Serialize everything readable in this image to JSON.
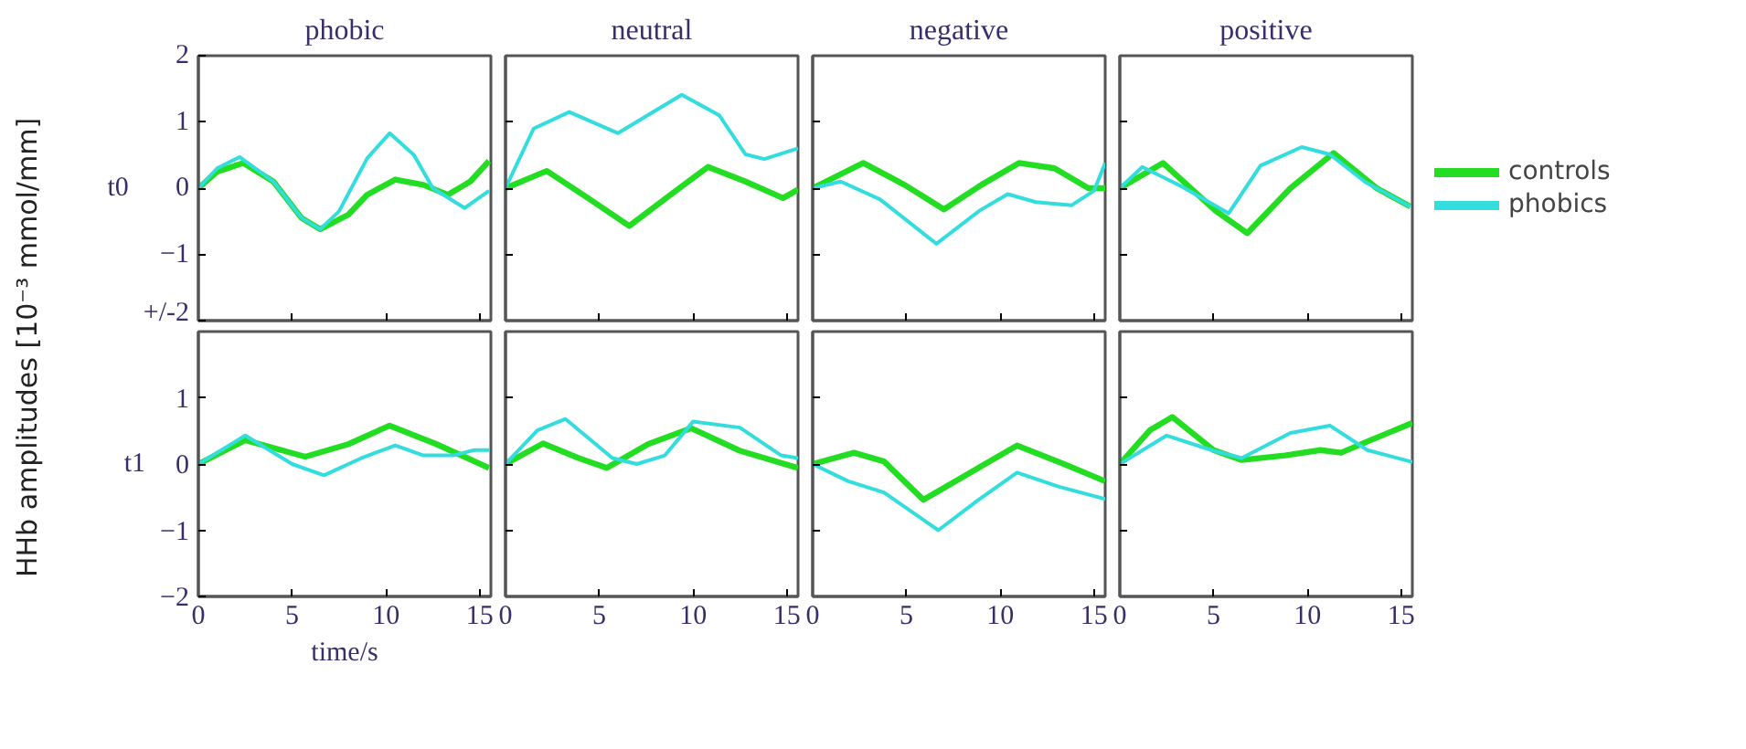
{
  "chart_data": [
    {
      "type": "line",
      "title": "phobic",
      "ylabel": "HHb amplitudes [10⁻³ mmol/mm]",
      "annotations": [
        "t0"
      ],
      "xlim": [
        0,
        15.6
      ],
      "ylim": [
        -2,
        2
      ],
      "xticks": [
        {
          "value": 0,
          "label": null
        },
        {
          "value": 5,
          "label": null
        },
        {
          "value": 10,
          "label": null
        },
        {
          "value": 15,
          "label": null
        }
      ],
      "yticks": [
        {
          "value": -2,
          "label": "+/-2"
        },
        -1,
        0,
        1,
        2
      ],
      "tick_labels": "y",
      "series": [
        {
          "color": "#22dd22",
          "x": [
            0,
            1,
            2.4,
            4,
            5.5,
            6.5,
            8,
            9,
            10.5,
            12,
            13.3,
            14.5,
            15.5
          ],
          "values": [
            0,
            0.25,
            0.38,
            0.1,
            -0.45,
            -0.62,
            -0.4,
            -0.1,
            0.13,
            0.05,
            -0.1,
            0.1,
            0.41
          ]
        },
        {
          "color": "#33dddd",
          "x": [
            0,
            1,
            2.2,
            4,
            5.5,
            6.5,
            7.5,
            9,
            10.2,
            11.5,
            12.5,
            14.2,
            15.5
          ],
          "values": [
            0,
            0.3,
            0.47,
            0.1,
            -0.45,
            -0.62,
            -0.35,
            0.45,
            0.83,
            0.5,
            0.0,
            -0.3,
            -0.04
          ]
        }
      ]
    },
    {
      "type": "line",
      "title": "neutral",
      "xlim": [
        0,
        15.6
      ],
      "ylim": [
        -2,
        2
      ],
      "xticks": [
        {
          "value": 0,
          "label": null
        },
        {
          "value": 5,
          "label": null
        },
        {
          "value": 10,
          "label": null
        },
        {
          "value": 15,
          "label": null
        }
      ],
      "yticks": [
        {
          "value": -1,
          "label": null
        },
        {
          "value": 0,
          "label": null
        },
        {
          "value": 1,
          "label": null
        }
      ],
      "tick_labels": false,
      "series": [
        {
          "color": "#22dd22",
          "x": [
            0,
            2.2,
            4.4,
            6.6,
            8.7,
            10.8,
            12.8,
            14.8,
            15.6
          ],
          "values": [
            0,
            0.26,
            -0.15,
            -0.57,
            -0.12,
            0.32,
            0.1,
            -0.15,
            -0.02
          ]
        },
        {
          "color": "#33dddd",
          "x": [
            0,
            1.5,
            3.4,
            6.0,
            9.4,
            11.4,
            12.8,
            13.8,
            15.6
          ],
          "values": [
            0,
            0.9,
            1.15,
            0.83,
            1.41,
            1.1,
            0.51,
            0.44,
            0.6
          ]
        }
      ]
    },
    {
      "type": "line",
      "title": "negative",
      "xlim": [
        0,
        15.6
      ],
      "ylim": [
        -2,
        2
      ],
      "xticks": [
        {
          "value": 0,
          "label": null
        },
        {
          "value": 5,
          "label": null
        },
        {
          "value": 10,
          "label": null
        },
        {
          "value": 15,
          "label": null
        }
      ],
      "yticks": [
        {
          "value": -1,
          "label": null
        },
        {
          "value": 0,
          "label": null
        },
        {
          "value": 1,
          "label": null
        }
      ],
      "tick_labels": false,
      "series": [
        {
          "color": "#22dd22",
          "x": [
            0,
            2.7,
            4.9,
            7.0,
            9.0,
            11.0,
            12.9,
            14.7,
            15.6
          ],
          "values": [
            0,
            0.38,
            0.05,
            -0.32,
            0.05,
            0.38,
            0.3,
            0,
            0
          ]
        },
        {
          "color": "#33dddd",
          "x": [
            0,
            1.5,
            3.6,
            6.6,
            8.9,
            10.4,
            11.9,
            13.8,
            15.0,
            15.6
          ],
          "values": [
            0,
            0.1,
            -0.17,
            -0.84,
            -0.34,
            -0.09,
            -0.21,
            -0.26,
            -0.04,
            0.38
          ]
        }
      ]
    },
    {
      "type": "line",
      "title": "positive",
      "legend": "right",
      "xlim": [
        0,
        15.6
      ],
      "ylim": [
        -2,
        2
      ],
      "xticks": [
        {
          "value": 0,
          "label": null
        },
        {
          "value": 5,
          "label": null
        },
        {
          "value": 10,
          "label": null
        },
        {
          "value": 15,
          "label": null
        }
      ],
      "yticks": [
        {
          "value": -1,
          "label": null
        },
        {
          "value": 0,
          "label": null
        },
        {
          "value": 1,
          "label": null
        }
      ],
      "tick_labels": false,
      "series": [
        {
          "name": "controls",
          "color": "#22dd22",
          "x": [
            0,
            2.3,
            5.1,
            6.8,
            9.1,
            11.4,
            13.7,
            15.5
          ],
          "values": [
            0,
            0.38,
            -0.34,
            -0.68,
            0,
            0.53,
            0,
            -0.28
          ]
        },
        {
          "name": "phobics",
          "color": "#33dddd",
          "x": [
            0,
            1.2,
            3.2,
            5.8,
            7.5,
            9.7,
            11.2,
            13.1,
            15.5
          ],
          "values": [
            0,
            0.32,
            0.04,
            -0.38,
            0.34,
            0.62,
            0.51,
            0.09,
            -0.28
          ]
        }
      ]
    },
    {
      "type": "line",
      "xlabel": "time/s",
      "annotations": [
        "t1"
      ],
      "xlim": [
        0,
        15.6
      ],
      "ylim": [
        -2,
        2
      ],
      "xticks": [
        0,
        5,
        10,
        15
      ],
      "yticks": [
        -2,
        -1,
        0,
        1
      ],
      "series": [
        {
          "color": "#22dd22",
          "x": [
            0,
            2.5,
            5.7,
            8,
            10.2,
            12.7,
            15.5
          ],
          "values": [
            0,
            0.36,
            0.11,
            0.3,
            0.58,
            0.3,
            -0.06
          ]
        },
        {
          "color": "#33dddd",
          "x": [
            0,
            2.5,
            5,
            6.7,
            8.7,
            10.5,
            12,
            13.6,
            14.7,
            15.5
          ],
          "values": [
            0,
            0.43,
            0,
            -0.17,
            0.09,
            0.28,
            0.13,
            0.13,
            0.21,
            0.21
          ]
        }
      ]
    },
    {
      "type": "line",
      "xlim": [
        0,
        15.6
      ],
      "ylim": [
        -2,
        2
      ],
      "xticks": [
        0,
        5,
        10,
        15
      ],
      "yticks": [
        {
          "value": -1,
          "label": null
        },
        {
          "value": 0,
          "label": null
        },
        {
          "value": 1,
          "label": null
        }
      ],
      "tick_labels": "x",
      "series": [
        {
          "color": "#22dd22",
          "x": [
            0,
            2,
            3.9,
            5.4,
            7.6,
            9.9,
            12.5,
            15.6
          ],
          "values": [
            0,
            0.31,
            0.09,
            -0.06,
            0.3,
            0.54,
            0.2,
            -0.06
          ]
        },
        {
          "color": "#33dddd",
          "x": [
            0,
            1.7,
            3.2,
            5.7,
            7,
            8.5,
            10,
            12.5,
            14.7,
            15.6
          ],
          "values": [
            0,
            0.51,
            0.68,
            0.09,
            0,
            0.13,
            0.64,
            0.55,
            0.13,
            0.09
          ]
        }
      ]
    },
    {
      "type": "line",
      "xlim": [
        0,
        15.6
      ],
      "ylim": [
        -2,
        2
      ],
      "xticks": [
        0,
        5,
        10,
        15
      ],
      "yticks": [
        {
          "value": -1,
          "label": null
        },
        {
          "value": 0,
          "label": null
        },
        {
          "value": 1,
          "label": null
        }
      ],
      "tick_labels": "x",
      "series": [
        {
          "color": "#22dd22",
          "x": [
            0,
            2.2,
            3.8,
            5.9,
            8.4,
            10.9,
            13.4,
            15.6
          ],
          "values": [
            0,
            0.17,
            0.04,
            -0.54,
            -0.13,
            0.28,
            0,
            -0.26
          ]
        },
        {
          "color": "#33dddd",
          "x": [
            0,
            1.9,
            3.8,
            6.7,
            8.8,
            10.9,
            13.1,
            15.6
          ],
          "values": [
            0,
            -0.26,
            -0.43,
            -1.0,
            -0.55,
            -0.13,
            -0.34,
            -0.53
          ]
        }
      ]
    },
    {
      "type": "line",
      "xlim": [
        0,
        15.6
      ],
      "ylim": [
        -2,
        2
      ],
      "xticks": [
        0,
        5,
        10,
        15
      ],
      "yticks": [
        {
          "value": -1,
          "label": null
        },
        {
          "value": 0,
          "label": null
        },
        {
          "value": 1,
          "label": null
        }
      ],
      "tick_labels": "x",
      "series": [
        {
          "color": "#22dd22",
          "x": [
            0,
            1.6,
            2.8,
            5,
            6.5,
            8.8,
            10.7,
            11.8,
            13.2,
            15.6
          ],
          "values": [
            0,
            0.51,
            0.71,
            0.21,
            0.06,
            0.13,
            0.21,
            0.17,
            0.34,
            0.62
          ]
        },
        {
          "color": "#33dddd",
          "x": [
            0,
            2.5,
            5,
            6.5,
            9.1,
            11.2,
            13.2,
            15.6
          ],
          "values": [
            0,
            0.43,
            0.2,
            0.09,
            0.47,
            0.58,
            0.21,
            0.03
          ]
        }
      ]
    }
  ]
}
